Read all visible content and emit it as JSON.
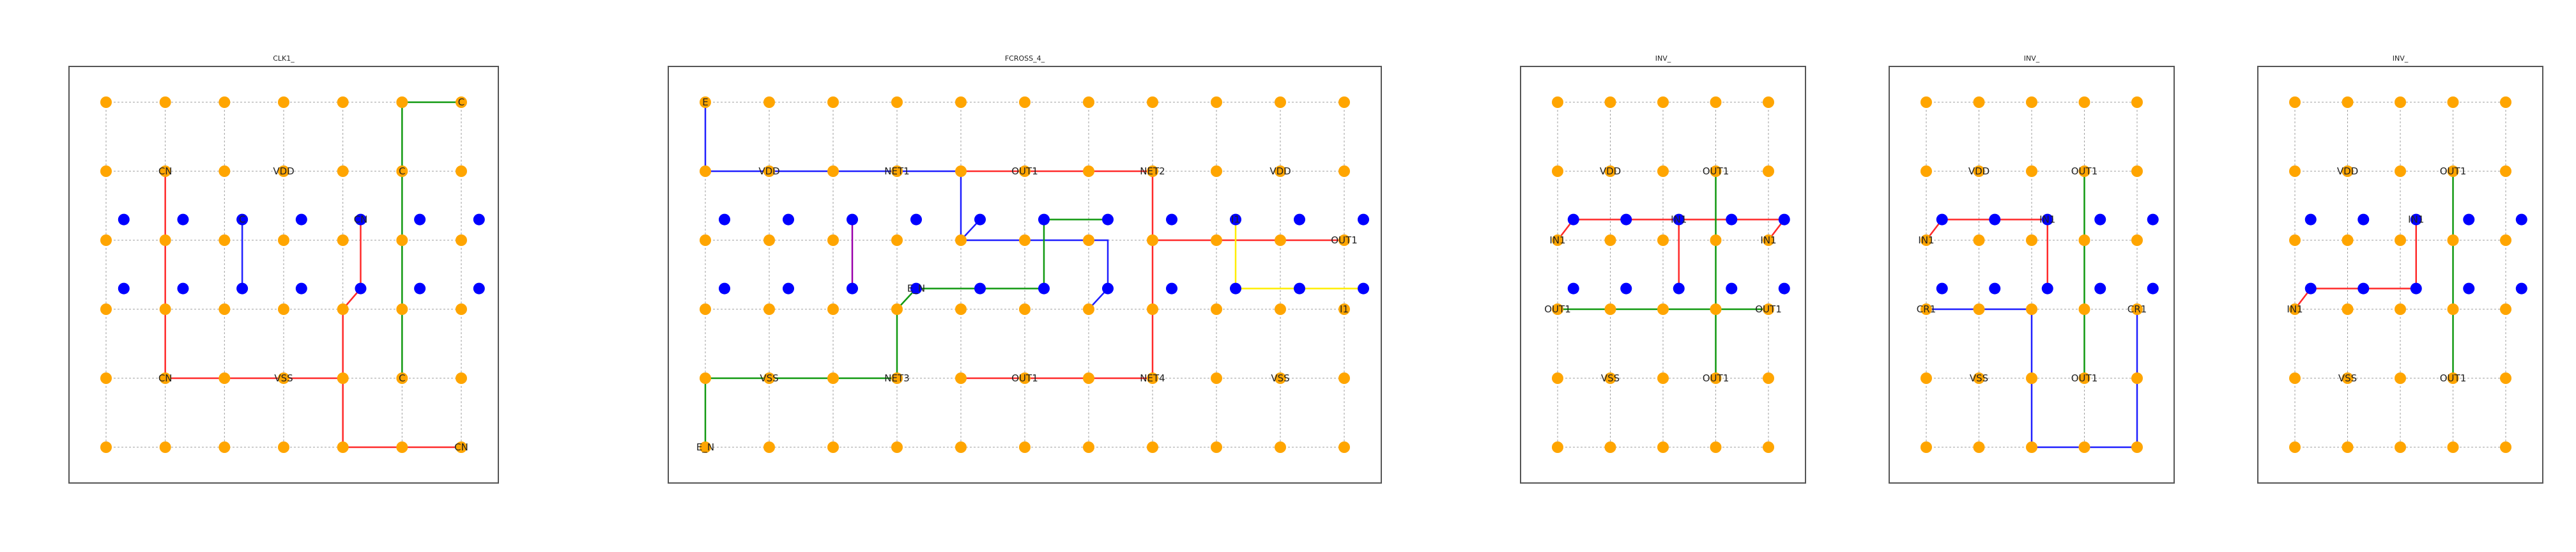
{
  "colors": {
    "grid": "#9e9e9e",
    "frame": "#555555",
    "pin": "#ffa500",
    "via": "#0000ff",
    "red": "#ff2a2a",
    "blue": "#1f1fff",
    "green": "#119911",
    "yellow": "#ffee00",
    "purple": "#9900aa",
    "text": "#222222"
  },
  "panels": [
    {
      "title": "CLK1_",
      "cols": 7,
      "rows": 6,
      "labels": [
        {
          "c": 6,
          "r": 0,
          "t": "C"
        },
        {
          "c": 1,
          "r": 1,
          "t": "CN"
        },
        {
          "c": 3,
          "r": 1,
          "t": "VDD"
        },
        {
          "c": 5,
          "r": 1,
          "t": "C"
        },
        {
          "c": 1,
          "r": 4,
          "t": "CN"
        },
        {
          "c": 3,
          "r": 4,
          "t": "VSS"
        },
        {
          "c": 5,
          "r": 4,
          "t": "C"
        },
        {
          "c": 6,
          "r": 5,
          "t": "CN"
        }
      ],
      "vias": [
        {
          "c": 0.3,
          "r": 1.7
        },
        {
          "c": 1.3,
          "r": 1.7
        },
        {
          "c": 2.3,
          "r": 1.7,
          "t": "C"
        },
        {
          "c": 3.3,
          "r": 1.7
        },
        {
          "c": 4.3,
          "r": 1.7,
          "t": "CN"
        },
        {
          "c": 5.3,
          "r": 1.7
        },
        {
          "c": 6.3,
          "r": 1.7
        },
        {
          "c": 0.3,
          "r": 2.7
        },
        {
          "c": 1.3,
          "r": 2.7
        },
        {
          "c": 2.3,
          "r": 2.7
        },
        {
          "c": 3.3,
          "r": 2.7
        },
        {
          "c": 4.3,
          "r": 2.7
        },
        {
          "c": 5.3,
          "r": 2.7
        },
        {
          "c": 6.3,
          "r": 2.7
        }
      ],
      "wires": [
        {
          "color": "green",
          "pts": [
            [
              6,
              0
            ],
            [
              5,
              0
            ],
            [
              5,
              1
            ],
            [
              5,
              2
            ],
            [
              5,
              3
            ],
            [
              5,
              4
            ]
          ]
        },
        {
          "color": "red",
          "pts": [
            [
              1,
              1
            ],
            [
              1,
              2
            ],
            [
              1,
              3
            ],
            [
              1,
              4
            ],
            [
              2,
              4
            ],
            [
              3,
              4
            ],
            [
              4,
              4
            ]
          ]
        },
        {
          "color": "red",
          "pts": [
            [
              4.3,
              1.7
            ],
            [
              4.3,
              2.7
            ],
            [
              4,
              3
            ],
            [
              4,
              4
            ],
            [
              4,
              5
            ],
            [
              5,
              5
            ],
            [
              6,
              5
            ]
          ]
        },
        {
          "color": "blue",
          "pts": [
            [
              2.3,
              1.7
            ],
            [
              2.3,
              2.7
            ]
          ]
        }
      ]
    },
    {
      "title": "FCROSS_4_",
      "cols": 11,
      "rows": 6,
      "labels": [
        {
          "c": 0,
          "r": 0,
          "t": "E"
        },
        {
          "c": 1,
          "r": 1,
          "t": "VDD"
        },
        {
          "c": 3,
          "r": 1,
          "t": "NET1"
        },
        {
          "c": 5,
          "r": 1,
          "t": "OUT1"
        },
        {
          "c": 7,
          "r": 1,
          "t": "NET2"
        },
        {
          "c": 9,
          "r": 1,
          "t": "VDD"
        },
        {
          "c": 10,
          "r": 2,
          "t": "OUT1"
        },
        {
          "c": 10,
          "r": 3,
          "t": "I1"
        },
        {
          "c": 1,
          "r": 4,
          "t": "VSS"
        },
        {
          "c": 3,
          "r": 4,
          "t": "NET3"
        },
        {
          "c": 5,
          "r": 4,
          "t": "OUT1"
        },
        {
          "c": 7,
          "r": 4,
          "t": "NET4"
        },
        {
          "c": 9,
          "r": 4,
          "t": "VSS"
        },
        {
          "c": 0,
          "r": 5,
          "t": "E_N"
        }
      ],
      "vias": [
        {
          "c": 0.3,
          "r": 1.7
        },
        {
          "c": 1.3,
          "r": 1.7
        },
        {
          "c": 2.3,
          "r": 1.7
        },
        {
          "c": 3.3,
          "r": 1.7
        },
        {
          "c": 4.3,
          "r": 1.7
        },
        {
          "c": 5.3,
          "r": 1.7
        },
        {
          "c": 6.3,
          "r": 1.7
        },
        {
          "c": 7.3,
          "r": 1.7
        },
        {
          "c": 8.3,
          "r": 1.7,
          "t": "I1"
        },
        {
          "c": 9.3,
          "r": 1.7
        },
        {
          "c": 10.3,
          "r": 1.7
        },
        {
          "c": 0.3,
          "r": 2.7
        },
        {
          "c": 1.3,
          "r": 2.7
        },
        {
          "c": 2.3,
          "r": 2.7
        },
        {
          "c": 3.3,
          "r": 2.7,
          "t": "E_N"
        },
        {
          "c": 4.3,
          "r": 2.7
        },
        {
          "c": 5.3,
          "r": 2.7
        },
        {
          "c": 6.3,
          "r": 2.7
        },
        {
          "c": 7.3,
          "r": 2.7
        },
        {
          "c": 8.3,
          "r": 2.7
        },
        {
          "c": 9.3,
          "r": 2.7
        },
        {
          "c": 10.3,
          "r": 2.7
        }
      ],
      "wires": [
        {
          "color": "blue",
          "pts": [
            [
              0,
              0
            ],
            [
              0,
              1
            ],
            [
              1,
              1
            ],
            [
              2,
              1
            ],
            [
              3,
              1
            ],
            [
              4,
              1
            ],
            [
              4,
              2
            ],
            [
              6.3,
              2
            ],
            [
              6.3,
              2.7
            ],
            [
              6,
              3
            ]
          ]
        },
        {
          "color": "blue",
          "pts": [
            [
              4,
              2
            ],
            [
              4.3,
              1.7
            ]
          ]
        },
        {
          "color": "red",
          "pts": [
            [
              4,
              1
            ],
            [
              5,
              1
            ],
            [
              6,
              1
            ],
            [
              7,
              1
            ],
            [
              7,
              2
            ],
            [
              7,
              3
            ],
            [
              7,
              4
            ]
          ]
        },
        {
          "color": "red",
          "pts": [
            [
              7,
              2
            ],
            [
              8,
              2
            ],
            [
              9,
              2
            ],
            [
              10,
              2
            ]
          ]
        },
        {
          "color": "red",
          "pts": [
            [
              4,
              4
            ],
            [
              5,
              4
            ],
            [
              6,
              4
            ],
            [
              7,
              4
            ]
          ]
        },
        {
          "color": "green",
          "pts": [
            [
              0,
              5
            ],
            [
              0,
              4
            ],
            [
              1,
              4
            ],
            [
              2,
              4
            ],
            [
              3,
              4
            ],
            [
              3,
              3
            ],
            [
              3.3,
              2.7
            ],
            [
              4.3,
              2.7
            ],
            [
              5.3,
              2.7
            ]
          ]
        },
        {
          "color": "green",
          "pts": [
            [
              5.3,
              2.7
            ],
            [
              5.3,
              1.7
            ],
            [
              6.3,
              1.7
            ]
          ]
        },
        {
          "color": "yellow",
          "pts": [
            [
              8.3,
              1.7
            ],
            [
              8.3,
              2.7
            ],
            [
              9.3,
              2.7
            ],
            [
              10.3,
              2.7
            ]
          ]
        },
        {
          "color": "purple",
          "pts": [
            [
              2.3,
              1.7
            ],
            [
              2.3,
              2.7
            ]
          ]
        }
      ]
    },
    {
      "title": "INV_",
      "cols": 5,
      "rows": 6,
      "labels": [
        {
          "c": 1,
          "r": 1,
          "t": "VDD"
        },
        {
          "c": 3,
          "r": 1,
          "t": "OUT1"
        },
        {
          "c": 0,
          "r": 2,
          "t": "IN1"
        },
        {
          "c": 4,
          "r": 2,
          "t": "IN1"
        },
        {
          "c": 0,
          "r": 3,
          "t": "OUT1"
        },
        {
          "c": 4,
          "r": 3,
          "t": "OUT1"
        },
        {
          "c": 1,
          "r": 4,
          "t": "VSS"
        },
        {
          "c": 3,
          "r": 4,
          "t": "OUT1"
        }
      ],
      "vias": [
        {
          "c": 0.3,
          "r": 1.7
        },
        {
          "c": 1.3,
          "r": 1.7
        },
        {
          "c": 2.3,
          "r": 1.7,
          "t": "IN1"
        },
        {
          "c": 3.3,
          "r": 1.7
        },
        {
          "c": 4.3,
          "r": 1.7
        },
        {
          "c": 0.3,
          "r": 2.7
        },
        {
          "c": 1.3,
          "r": 2.7
        },
        {
          "c": 2.3,
          "r": 2.7
        },
        {
          "c": 3.3,
          "r": 2.7
        },
        {
          "c": 4.3,
          "r": 2.7
        }
      ],
      "wires": [
        {
          "color": "red",
          "pts": [
            [
              0,
              2
            ],
            [
              0.3,
              1.7
            ],
            [
              1.3,
              1.7
            ],
            [
              2.3,
              1.7
            ],
            [
              3.3,
              1.7
            ],
            [
              4.3,
              1.7
            ],
            [
              4,
              2
            ]
          ]
        },
        {
          "color": "red",
          "pts": [
            [
              2.3,
              1.7
            ],
            [
              2.3,
              2.7
            ]
          ]
        },
        {
          "color": "green",
          "pts": [
            [
              0,
              3
            ],
            [
              1,
              3
            ],
            [
              2,
              3
            ],
            [
              3,
              3
            ],
            [
              4,
              3
            ]
          ]
        },
        {
          "color": "green",
          "pts": [
            [
              3,
              1
            ],
            [
              3,
              2
            ],
            [
              3,
              3
            ],
            [
              3,
              4
            ]
          ]
        }
      ]
    },
    {
      "title": "INV_",
      "cols": 5,
      "rows": 6,
      "labels": [
        {
          "c": 1,
          "r": 1,
          "t": "VDD"
        },
        {
          "c": 3,
          "r": 1,
          "t": "OUT1"
        },
        {
          "c": 0,
          "r": 2,
          "t": "IN1"
        },
        {
          "c": 0,
          "r": 3,
          "t": "CR1"
        },
        {
          "c": 4,
          "r": 3,
          "t": "CR1"
        },
        {
          "c": 1,
          "r": 4,
          "t": "VSS"
        },
        {
          "c": 3,
          "r": 4,
          "t": "OUT1"
        }
      ],
      "vias": [
        {
          "c": 0.3,
          "r": 1.7
        },
        {
          "c": 1.3,
          "r": 1.7
        },
        {
          "c": 2.3,
          "r": 1.7,
          "t": "IN1"
        },
        {
          "c": 3.3,
          "r": 1.7
        },
        {
          "c": 4.3,
          "r": 1.7
        },
        {
          "c": 0.3,
          "r": 2.7
        },
        {
          "c": 1.3,
          "r": 2.7
        },
        {
          "c": 2.3,
          "r": 2.7
        },
        {
          "c": 3.3,
          "r": 2.7
        },
        {
          "c": 4.3,
          "r": 2.7
        }
      ],
      "wires": [
        {
          "color": "red",
          "pts": [
            [
              0,
              2
            ],
            [
              0.3,
              1.7
            ],
            [
              1.3,
              1.7
            ],
            [
              2.3,
              1.7
            ],
            [
              2.3,
              2.7
            ]
          ]
        },
        {
          "color": "blue",
          "pts": [
            [
              0,
              3
            ],
            [
              1,
              3
            ],
            [
              2,
              3
            ],
            [
              2,
              4
            ],
            [
              2,
              5
            ],
            [
              3,
              5
            ],
            [
              4,
              5
            ],
            [
              4,
              4
            ],
            [
              4,
              3
            ]
          ]
        },
        {
          "color": "green",
          "pts": [
            [
              3,
              1
            ],
            [
              3,
              2
            ],
            [
              3,
              3
            ],
            [
              3,
              4
            ]
          ]
        }
      ]
    },
    {
      "title": "INV_",
      "cols": 5,
      "rows": 6,
      "labels": [
        {
          "c": 1,
          "r": 1,
          "t": "VDD"
        },
        {
          "c": 3,
          "r": 1,
          "t": "OUT1"
        },
        {
          "c": 0,
          "r": 3,
          "t": "IN1"
        },
        {
          "c": 1,
          "r": 4,
          "t": "VSS"
        },
        {
          "c": 3,
          "r": 4,
          "t": "OUT1"
        }
      ],
      "vias": [
        {
          "c": 0.3,
          "r": 1.7
        },
        {
          "c": 1.3,
          "r": 1.7
        },
        {
          "c": 2.3,
          "r": 1.7,
          "t": "IN1"
        },
        {
          "c": 3.3,
          "r": 1.7
        },
        {
          "c": 4.3,
          "r": 1.7
        },
        {
          "c": 0.3,
          "r": 2.7
        },
        {
          "c": 1.3,
          "r": 2.7
        },
        {
          "c": 2.3,
          "r": 2.7
        },
        {
          "c": 3.3,
          "r": 2.7
        },
        {
          "c": 4.3,
          "r": 2.7
        }
      ],
      "wires": [
        {
          "color": "red",
          "pts": [
            [
              0,
              3
            ],
            [
              0.3,
              2.7
            ],
            [
              1.3,
              2.7
            ],
            [
              2.3,
              2.7
            ],
            [
              2.3,
              1.7
            ]
          ]
        },
        {
          "color": "green",
          "pts": [
            [
              3,
              1
            ],
            [
              3,
              2
            ],
            [
              3,
              3
            ],
            [
              3,
              4
            ]
          ]
        }
      ]
    }
  ]
}
